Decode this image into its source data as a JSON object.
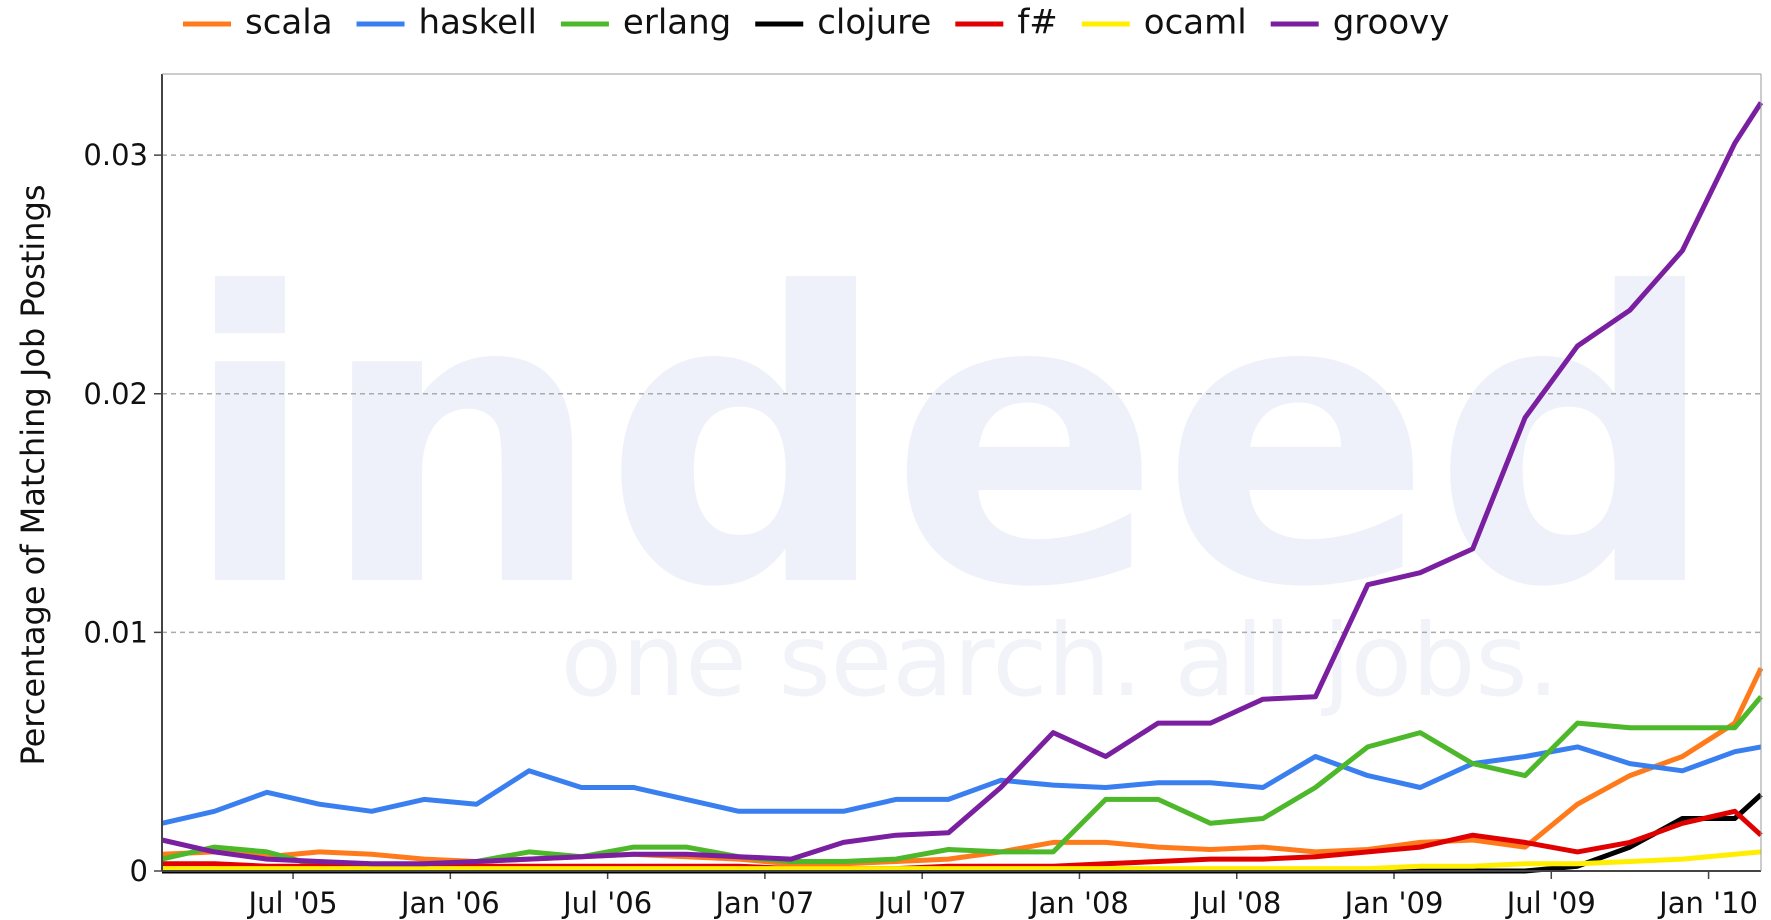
{
  "chart_data": {
    "type": "line",
    "watermark": "indeed",
    "watermark_tagline": "one search. all jobs.",
    "ylabel": "Percentage of Matching Job Postings",
    "legend": "top",
    "grid": true,
    "x": [
      "2005-02",
      "2005-04",
      "2005-06",
      "2005-08",
      "2005-10",
      "2005-12",
      "2006-02",
      "2006-04",
      "2006-06",
      "2006-08",
      "2006-10",
      "2006-12",
      "2007-02",
      "2007-04",
      "2007-06",
      "2007-08",
      "2007-10",
      "2007-12",
      "2008-02",
      "2008-04",
      "2008-06",
      "2008-08",
      "2008-10",
      "2008-12",
      "2009-02",
      "2009-04",
      "2009-06",
      "2009-08",
      "2009-10",
      "2009-12",
      "2010-02",
      "2010-03"
    ],
    "xlim": [
      "2005-02",
      "2010-03"
    ],
    "xticks": [
      {
        "value": "2005-07",
        "label": "Jul '05"
      },
      {
        "value": "2006-01",
        "label": "Jan '06"
      },
      {
        "value": "2006-07",
        "label": "Jul '06"
      },
      {
        "value": "2007-01",
        "label": "Jan '07"
      },
      {
        "value": "2007-07",
        "label": "Jul '07"
      },
      {
        "value": "2008-01",
        "label": "Jan '08"
      },
      {
        "value": "2008-07",
        "label": "Jul '08"
      },
      {
        "value": "2009-01",
        "label": "Jan '09"
      },
      {
        "value": "2009-07",
        "label": "Jul '09"
      },
      {
        "value": "2010-01",
        "label": "Jan '10"
      }
    ],
    "ylim": [
      0,
      0.0334
    ],
    "yticks": [
      0,
      0.01,
      0.02,
      0.03
    ],
    "series": [
      {
        "name": "scala",
        "color": "#ff7a1a",
        "values": [
          0.0007,
          0.0008,
          0.0006,
          0.0008,
          0.0007,
          0.0005,
          0.0004,
          0.0005,
          0.0006,
          0.0007,
          0.0006,
          0.0005,
          0.0003,
          0.0003,
          0.0004,
          0.0005,
          0.0008,
          0.0012,
          0.0012,
          0.001,
          0.0009,
          0.001,
          0.0008,
          0.0009,
          0.0012,
          0.0013,
          0.001,
          0.0028,
          0.004,
          0.0048,
          0.0062,
          0.0085
        ]
      },
      {
        "name": "haskell",
        "color": "#3a7ff0",
        "values": [
          0.002,
          0.0025,
          0.0033,
          0.0028,
          0.0025,
          0.003,
          0.0028,
          0.0042,
          0.0035,
          0.0035,
          0.003,
          0.0025,
          0.0025,
          0.0025,
          0.003,
          0.003,
          0.0038,
          0.0036,
          0.0035,
          0.0037,
          0.0037,
          0.0035,
          0.0048,
          0.004,
          0.0035,
          0.0045,
          0.0048,
          0.0052,
          0.0045,
          0.0042,
          0.005,
          0.0052
        ]
      },
      {
        "name": "erlang",
        "color": "#4cb82a",
        "values": [
          0.0005,
          0.001,
          0.0008,
          0.0002,
          0.0002,
          0.0003,
          0.0004,
          0.0008,
          0.0006,
          0.001,
          0.001,
          0.0006,
          0.0004,
          0.0004,
          0.0005,
          0.0009,
          0.0008,
          0.0008,
          0.003,
          0.003,
          0.002,
          0.0022,
          0.0035,
          0.0052,
          0.0058,
          0.0045,
          0.004,
          0.0062,
          0.006,
          0.006,
          0.006,
          0.0073
        ]
      },
      {
        "name": "clojure",
        "color": "#000000",
        "values": [
          0,
          0,
          0,
          0,
          0,
          0,
          0,
          0,
          0,
          0,
          0,
          0,
          0,
          0,
          0,
          0,
          0,
          0,
          0,
          0,
          0,
          0,
          0,
          0,
          0,
          0,
          0,
          0.0002,
          0.001,
          0.0022,
          0.0022,
          0.0032
        ]
      },
      {
        "name": "f#",
        "color": "#e00000",
        "values": [
          0.0003,
          0.0003,
          0.0002,
          0.0002,
          0.0002,
          0.0002,
          0.0002,
          0.0002,
          0.0002,
          0.0002,
          0.0002,
          0.0002,
          0.0001,
          0.0001,
          0.0001,
          0.0002,
          0.0002,
          0.0002,
          0.0003,
          0.0004,
          0.0005,
          0.0005,
          0.0006,
          0.0008,
          0.001,
          0.0015,
          0.0012,
          0.0008,
          0.0012,
          0.002,
          0.0025,
          0.0015
        ]
      },
      {
        "name": "ocaml",
        "color": "#ffee00",
        "values": [
          0.0001,
          0.0001,
          0.0001,
          0.0001,
          0.0001,
          0.0001,
          0.0001,
          0.0001,
          0.0001,
          0.0001,
          0.0001,
          0.0001,
          0.0001,
          0.0001,
          0.0001,
          0.0001,
          0.0001,
          0.0001,
          0.0001,
          0.0001,
          0.0001,
          0.0001,
          0.0001,
          0.0001,
          0.0002,
          0.0002,
          0.0003,
          0.0003,
          0.0004,
          0.0005,
          0.0007,
          0.0008
        ]
      },
      {
        "name": "groovy",
        "color": "#7a1fa0",
        "values": [
          0.0013,
          0.0008,
          0.0005,
          0.0004,
          0.0003,
          0.0003,
          0.0004,
          0.0005,
          0.0006,
          0.0007,
          0.0007,
          0.0006,
          0.0005,
          0.0012,
          0.0015,
          0.0016,
          0.0035,
          0.0058,
          0.0048,
          0.0062,
          0.0062,
          0.0072,
          0.0073,
          0.012,
          0.0125,
          0.0135,
          0.019,
          0.022,
          0.0235,
          0.026,
          0.0305,
          0.0322
        ]
      }
    ]
  }
}
